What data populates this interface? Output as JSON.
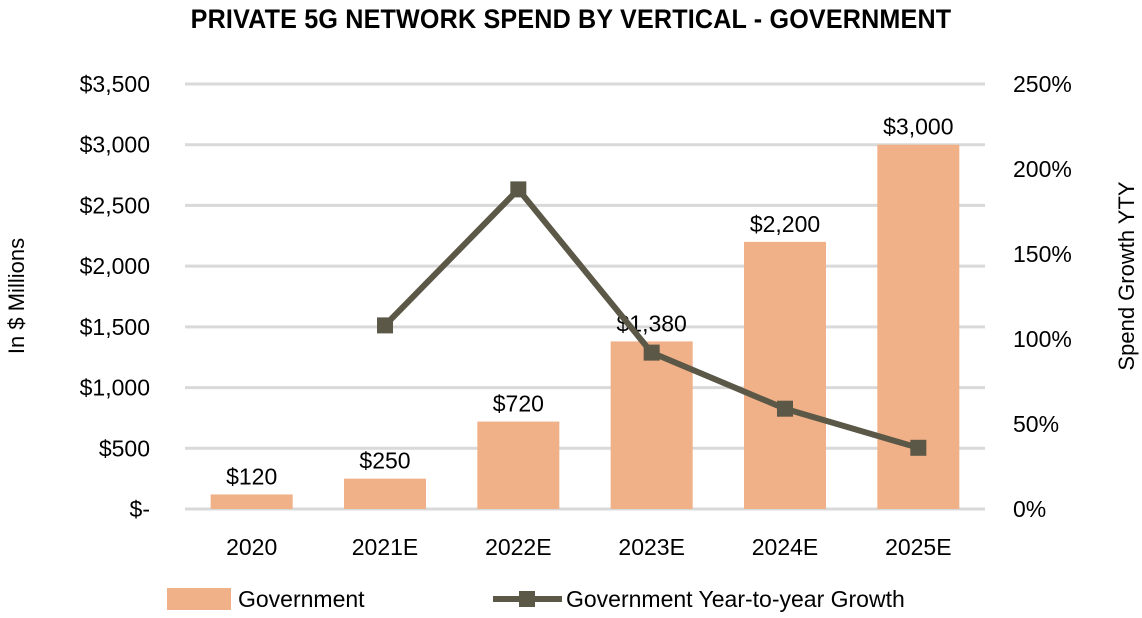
{
  "chart_data": {
    "type": "bar",
    "title": "PRIVATE 5G NETWORK SPEND BY VERTICAL - GOVERNMENT",
    "categories": [
      "2020",
      "2021E",
      "2022E",
      "2023E",
      "2024E",
      "2025E"
    ],
    "series": [
      {
        "name": "Government",
        "type": "bar",
        "axis": "left",
        "color": "#F0B088",
        "values": [
          120,
          250,
          720,
          1380,
          2200,
          3000
        ],
        "labels": [
          "$120",
          "$250",
          "$720",
          "$1,380",
          "$2,200",
          "$3,000"
        ]
      },
      {
        "name": "Government Year-to-year Growth",
        "type": "line",
        "axis": "right",
        "color": "#5B5847",
        "marker": "square",
        "values": [
          null,
          108,
          188,
          92,
          59,
          36
        ]
      }
    ],
    "left_axis": {
      "label": "In $ Millions",
      "range": [
        0,
        3500
      ],
      "ticks": [
        0,
        500,
        1000,
        1500,
        2000,
        2500,
        3000,
        3500
      ],
      "tick_labels": [
        "$-",
        "$500",
        "$1,000",
        "$1,500",
        "$2,000",
        "$2,500",
        "$3,000",
        "$3,500"
      ]
    },
    "right_axis": {
      "label": "Spend Growth YTY",
      "unit": "%",
      "range": [
        0,
        250
      ],
      "ticks": [
        0,
        50,
        100,
        150,
        200,
        250
      ],
      "tick_labels": [
        "0%",
        "50%",
        "100%",
        "150%",
        "200%",
        "250%"
      ]
    },
    "grid": true,
    "gridline_color": "#D9D9D9",
    "legend": "bottom"
  }
}
